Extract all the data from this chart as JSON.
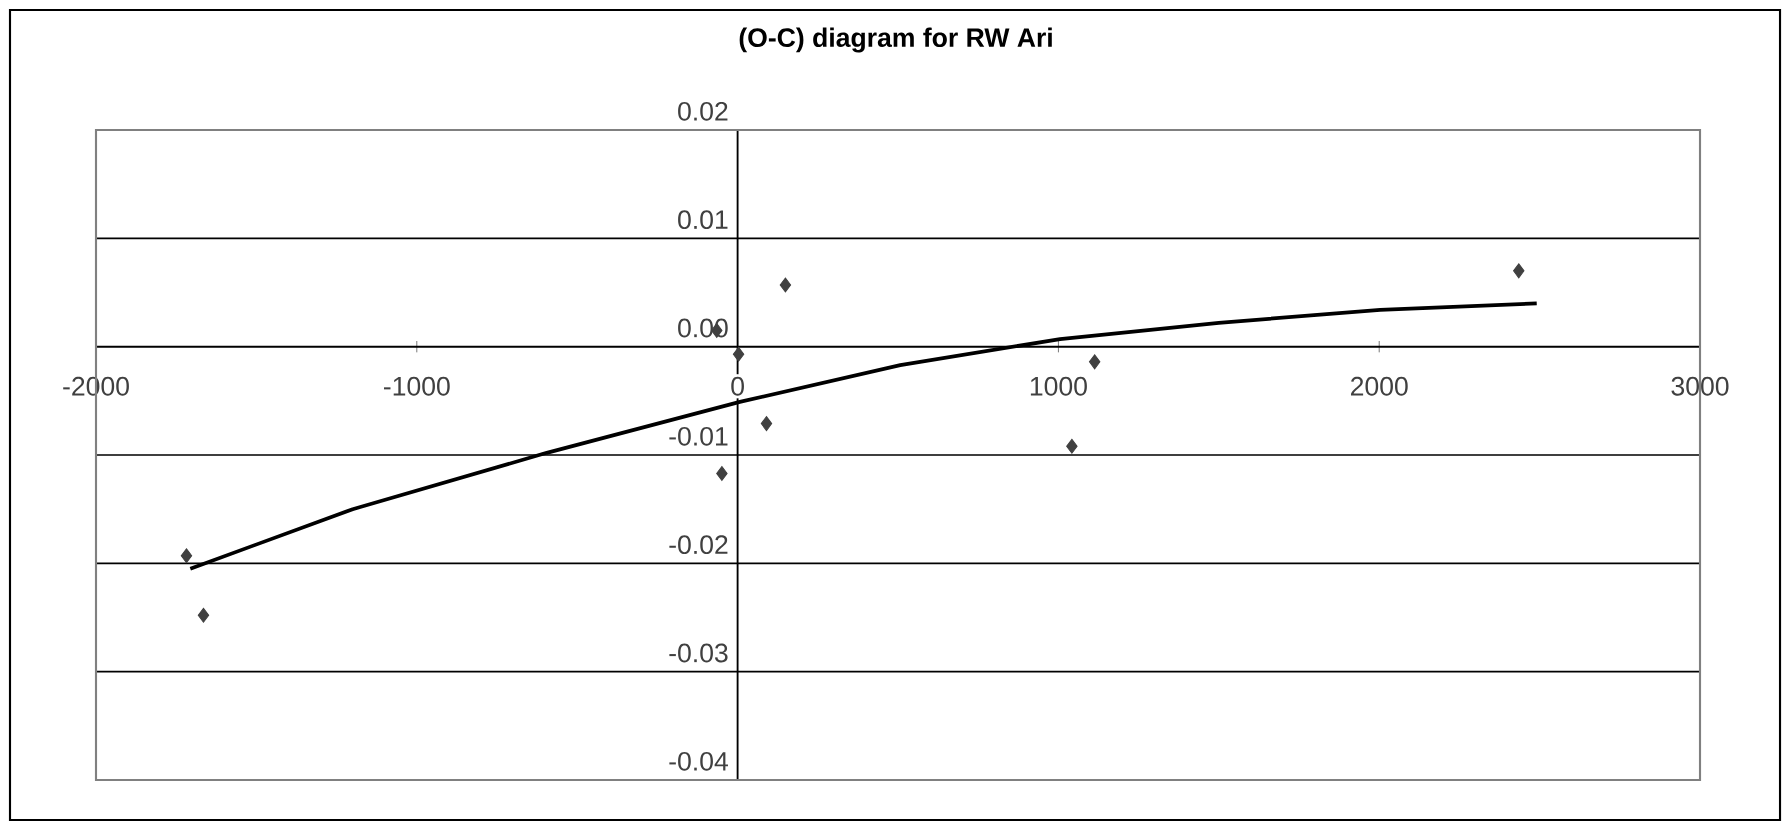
{
  "chart_data": {
    "type": "scatter",
    "title": "(O-C) diagram for RW Ari",
    "xlim": [
      -2000,
      3000
    ],
    "ylim": [
      -0.04,
      0.02
    ],
    "xticks": [
      -2000,
      -1000,
      0,
      1000,
      2000,
      3000
    ],
    "yticks": [
      {
        "value": 0.02,
        "label": "0.02"
      },
      {
        "value": 0.01,
        "label": "0.01"
      },
      {
        "value": 0,
        "label": "0.00"
      },
      {
        "value": -0.01,
        "label": "-0.01"
      },
      {
        "value": -0.02,
        "label": "-0.02"
      },
      {
        "value": -0.03,
        "label": "-0.03"
      },
      {
        "value": -0.04,
        "label": "-0.04"
      }
    ],
    "grid": "y",
    "marker": "diamond",
    "series": [
      {
        "color": "#404040",
        "x": [
          -1718,
          -1665,
          -65,
          3,
          149,
          90,
          -49,
          1042,
          1113,
          2435
        ],
        "values": [
          -0.0193,
          -0.0248,
          0.0015,
          -0.0007,
          0.0057,
          -0.0071,
          -0.0117,
          -0.0092,
          -0.0014,
          0.007
        ]
      },
      {
        "type": "line",
        "marker": "none",
        "color": "#000000",
        "x": [
          -1706,
          -1200,
          -595,
          7,
          507,
          1005,
          1500,
          2003,
          2491
        ],
        "values": [
          -0.0205,
          -0.015,
          -0.0098,
          -0.0051,
          -0.0017,
          0.0007,
          0.0022,
          0.0034,
          0.004
        ]
      }
    ]
  }
}
